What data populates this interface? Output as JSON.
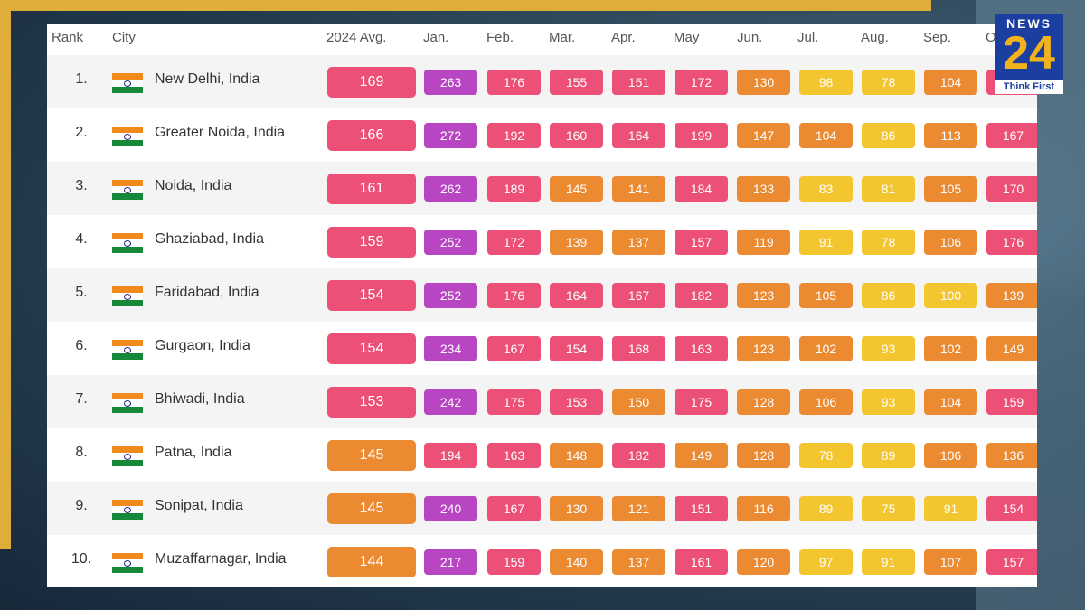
{
  "header": {
    "rank": "Rank",
    "city": "City",
    "avg": "2024 Avg.",
    "months": [
      "Jan.",
      "Feb.",
      "Mar.",
      "Apr.",
      "May",
      "Jun.",
      "Jul.",
      "Aug.",
      "Sep.",
      "O"
    ]
  },
  "rows": [
    {
      "rank": "1.",
      "city": "New Delhi, India",
      "avg": "169",
      "values": [
        "263",
        "176",
        "155",
        "151",
        "172",
        "130",
        "98",
        "78",
        "104",
        ""
      ]
    },
    {
      "rank": "2.",
      "city": "Greater Noida, India",
      "avg": "166",
      "values": [
        "272",
        "192",
        "160",
        "164",
        "199",
        "147",
        "104",
        "86",
        "113",
        "167"
      ]
    },
    {
      "rank": "3.",
      "city": "Noida, India",
      "avg": "161",
      "values": [
        "262",
        "189",
        "145",
        "141",
        "184",
        "133",
        "83",
        "81",
        "105",
        "170"
      ]
    },
    {
      "rank": "4.",
      "city": "Ghaziabad, India",
      "avg": "159",
      "values": [
        "252",
        "172",
        "139",
        "137",
        "157",
        "119",
        "91",
        "78",
        "106",
        "176"
      ]
    },
    {
      "rank": "5.",
      "city": "Faridabad, India",
      "avg": "154",
      "values": [
        "252",
        "176",
        "164",
        "167",
        "182",
        "123",
        "105",
        "86",
        "100",
        "139"
      ]
    },
    {
      "rank": "6.",
      "city": "Gurgaon, India",
      "avg": "154",
      "values": [
        "234",
        "167",
        "154",
        "168",
        "163",
        "123",
        "102",
        "93",
        "102",
        "149"
      ]
    },
    {
      "rank": "7.",
      "city": "Bhiwadi, India",
      "avg": "153",
      "values": [
        "242",
        "175",
        "153",
        "150",
        "175",
        "128",
        "106",
        "93",
        "104",
        "159"
      ]
    },
    {
      "rank": "8.",
      "city": "Patna, India",
      "avg": "145",
      "values": [
        "194",
        "163",
        "148",
        "182",
        "149",
        "128",
        "78",
        "89",
        "106",
        "136"
      ]
    },
    {
      "rank": "9.",
      "city": "Sonipat, India",
      "avg": "145",
      "values": [
        "240",
        "167",
        "130",
        "121",
        "151",
        "116",
        "89",
        "75",
        "91",
        "154"
      ]
    },
    {
      "rank": "10.",
      "city": "Muzaffarnagar, India",
      "avg": "144",
      "values": [
        "217",
        "159",
        "140",
        "137",
        "161",
        "120",
        "97",
        "91",
        "107",
        "157"
      ]
    }
  ],
  "logo": {
    "top": "NEWS",
    "number": "24",
    "tagline": "Think First"
  },
  "colors": {
    "purple": "#b845c2",
    "pink": "#ec5077",
    "orange": "#ec8a31",
    "yellow": "#f3c52f",
    "frame": "#dfae3a",
    "logo_blue": "#1b3fa0"
  }
}
